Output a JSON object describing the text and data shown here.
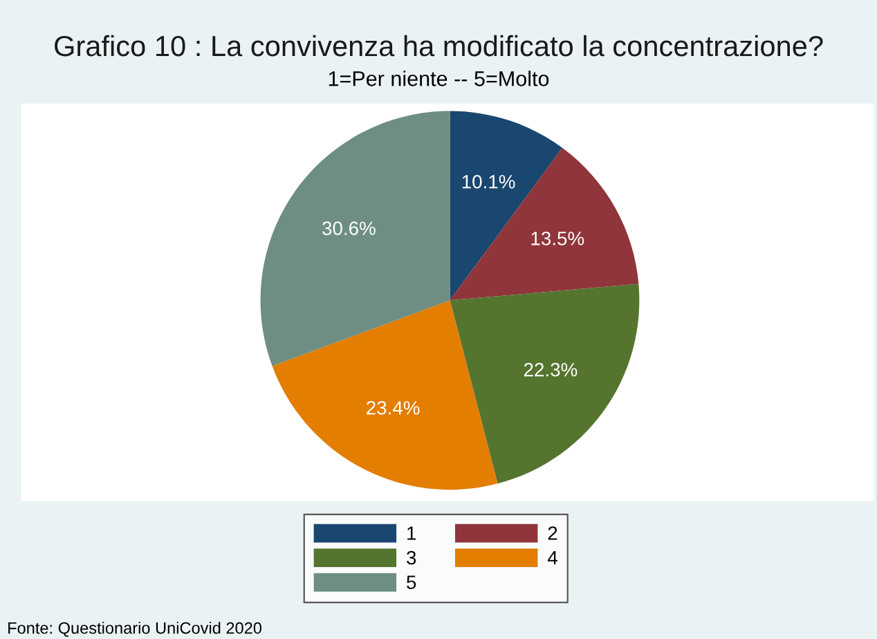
{
  "chart_data": {
    "type": "pie",
    "title": "Grafico 10 : La convivenza ha modificato la concentrazione?",
    "subtitle": "1=Per niente -- 5=Molto",
    "categories": [
      "1",
      "2",
      "3",
      "4",
      "5"
    ],
    "values": [
      10.1,
      13.5,
      22.3,
      23.4,
      30.6
    ],
    "colors": [
      "#1a476f",
      "#90353b",
      "#55752f",
      "#e37e00",
      "#6e8e84"
    ],
    "value_labels": [
      "10.1%",
      "13.5%",
      "22.3%",
      "23.4%",
      "30.6%"
    ],
    "legend": "bottom",
    "annotations": [
      "Fonte: Questionario UniCovid 2020"
    ]
  }
}
